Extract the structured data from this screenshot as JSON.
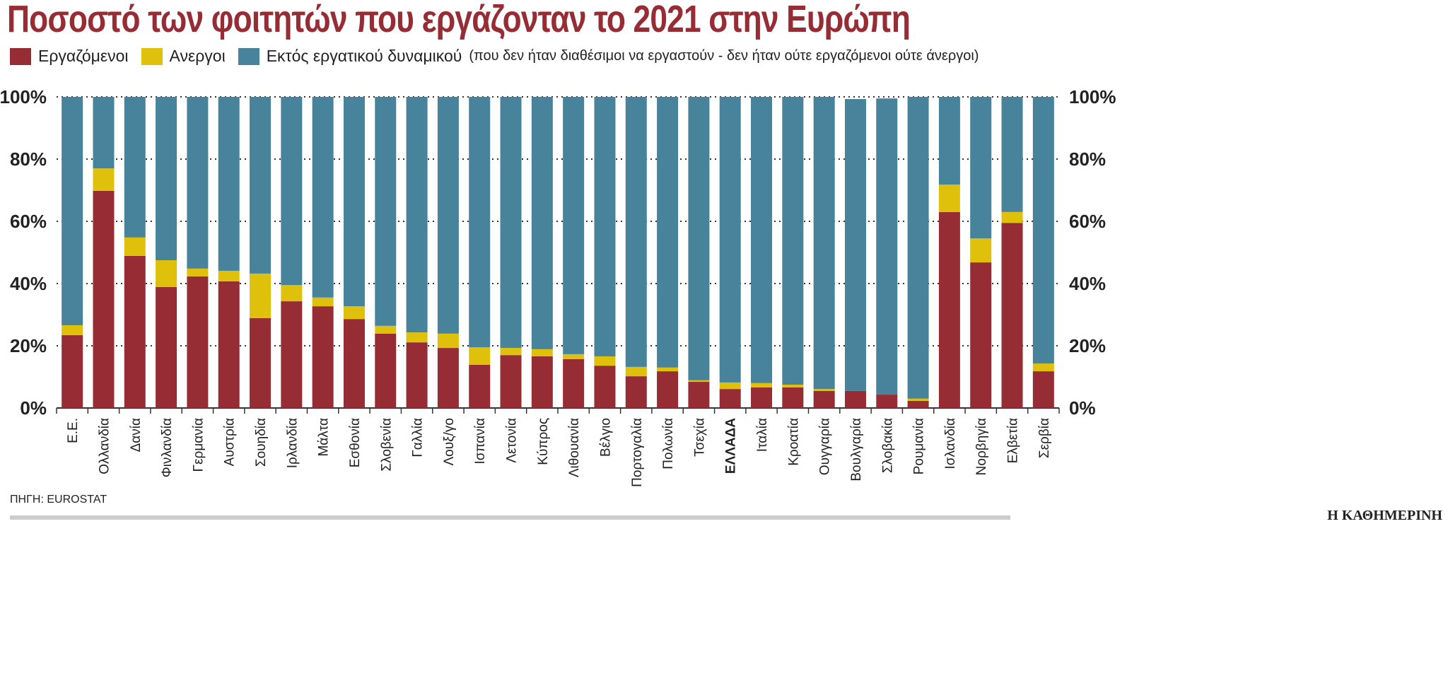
{
  "chart_data": {
    "type": "bar",
    "stacked": true,
    "title": "Ποσοστό των φοιτητών που εργάζονταν το 2021 στην Ευρώπη",
    "categories": [
      "Ε.Ε.",
      "Ολλανδία",
      "Δανία",
      "Φινλανδία",
      "Γερμανία",
      "Αυστρία",
      "Σουηδία",
      "Ιρλανδία",
      "Μάλτα",
      "Εσθονία",
      "Σλοβενία",
      "Γαλλία",
      "Λουξ/γο",
      "Ισπανία",
      "Λετονία",
      "Κύπρος",
      "Λιθουανία",
      "Βέλγιο",
      "Πορτογαλία",
      "Πολωνία",
      "Τσεχία",
      "ΕΛΛΑΔΑ",
      "Ιταλία",
      "Κροατία",
      "Ουγγαρία",
      "Βουλγαρία",
      "Σλοβακία",
      "Ρουμανία",
      "Ισλανδία",
      "Νορβηγία",
      "Ελβετία",
      "Σερβία"
    ],
    "highlight_category": "ΕΛΛΑΔΑ",
    "series": [
      {
        "name": "Εργαζόμενοι",
        "color": "#962d35",
        "values": [
          23.4,
          69.8,
          48.9,
          38.9,
          42.3,
          40.7,
          28.9,
          34.3,
          32.7,
          28.6,
          23.9,
          21.1,
          19.3,
          13.9,
          17.0,
          16.6,
          15.7,
          13.6,
          10.2,
          11.8,
          8.4,
          6.1,
          6.6,
          6.6,
          5.5,
          5.5,
          4.3,
          2.3,
          63.0,
          46.8,
          59.5,
          11.8
        ]
      },
      {
        "name": "Ανεργοι",
        "color": "#dfc10c",
        "values": [
          3.2,
          7.2,
          5.9,
          8.6,
          2.5,
          3.4,
          14.3,
          5.2,
          2.8,
          4.1,
          2.5,
          3.2,
          4.6,
          5.6,
          2.3,
          2.3,
          1.6,
          3.0,
          3.0,
          1.2,
          0.5,
          2.1,
          1.4,
          0.9,
          0.6,
          0.0,
          0.0,
          0.7,
          8.8,
          7.7,
          3.5,
          2.5
        ]
      },
      {
        "name": "Εκτός εργατικού δυναμικού",
        "color": "#47839b",
        "values": [
          73.4,
          23.0,
          45.2,
          52.5,
          55.2,
          55.9,
          56.8,
          60.5,
          64.5,
          67.3,
          73.6,
          75.7,
          76.1,
          80.5,
          80.7,
          81.1,
          82.7,
          83.4,
          86.8,
          87.0,
          91.1,
          91.8,
          92.0,
          92.5,
          93.9,
          93.8,
          95.2,
          97.0,
          28.2,
          45.5,
          37.0,
          85.7
        ]
      }
    ],
    "legend_note": "(που δεν ήταν διαθέσιμοι να εργαστούν - δεν ήταν ούτε εργαζόμενοι ούτε άνεργοι)",
    "yticks": [
      "0%",
      "20%",
      "40%",
      "60%",
      "80%",
      "100%"
    ],
    "ylim": [
      0,
      100
    ],
    "grid": true,
    "legend_position": "top-left"
  },
  "source": "ΠΗΓΗ: EUROSTAT",
  "brand": "Η ΚΑΘΗΜΕΡΙΝΗ"
}
